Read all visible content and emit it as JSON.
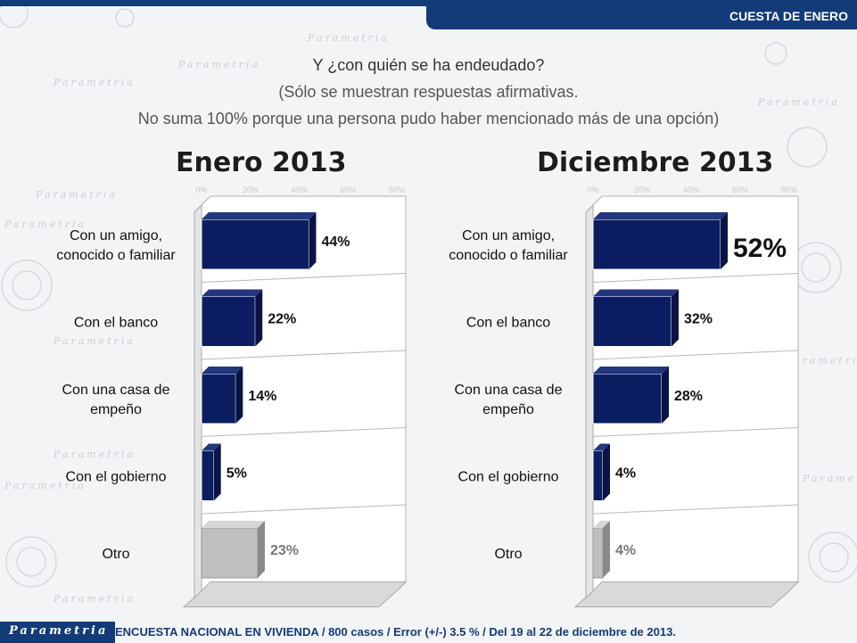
{
  "header": {
    "tag": "CUESTA DE ENERO"
  },
  "question": {
    "line1": "Y ¿con quién se ha endeudado?",
    "line2": "(Sólo se muestran respuestas afirmativas.",
    "line3": "No suma 100% porque una persona pudo haber mencionado más de una opción)"
  },
  "footer": {
    "brand": "Parametria",
    "note": "ENCUESTA NACIONAL EN VIVIENDA / 800 casos / Error (+/-) 3.5 % / Del 19 al 22 de diciembre de 2013."
  },
  "background": {
    "watermark": "Parametria"
  },
  "colors": {
    "bar": "#0c1e61",
    "bar_other": "#bfbfbf",
    "brand": "#123b78"
  },
  "chart_data": [
    {
      "type": "bar",
      "orientation": "horizontal",
      "title": "Enero 2013",
      "categories": [
        "Con un amigo, conocido o familiar",
        "Con el banco",
        "Con una casa de empeño",
        "Con el gobierno",
        "Otro"
      ],
      "values": [
        44,
        22,
        14,
        5,
        23
      ],
      "labels": [
        "44%",
        "22%",
        "14%",
        "5%",
        "23%"
      ],
      "xlim": [
        0,
        80
      ],
      "ticks": [
        "0%",
        "20%",
        "40%",
        "60%",
        "80%"
      ],
      "grid": true
    },
    {
      "type": "bar",
      "orientation": "horizontal",
      "title": "Diciembre 2013",
      "categories": [
        "Con un amigo, conocido o familiar",
        "Con el banco",
        "Con una casa de empeño",
        "Con el gobierno",
        "Otro"
      ],
      "values": [
        52,
        32,
        28,
        4,
        4
      ],
      "labels": [
        "52%",
        "32%",
        "28%",
        "4%",
        "4%"
      ],
      "xlim": [
        0,
        80
      ],
      "ticks": [
        "0%",
        "20%",
        "40%",
        "60%",
        "80%"
      ],
      "grid": true
    }
  ]
}
